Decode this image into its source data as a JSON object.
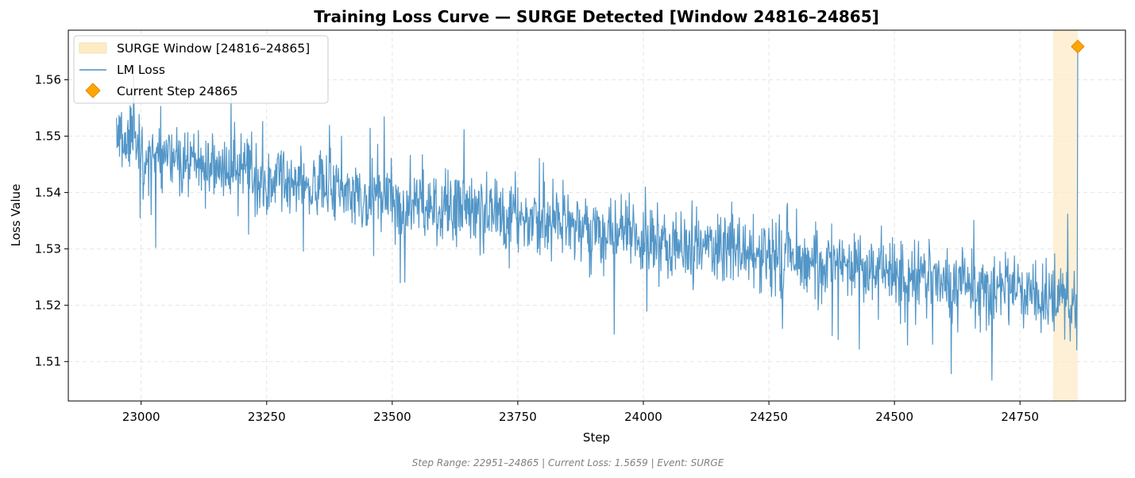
{
  "chart_data": {
    "type": "line",
    "title": "Training Loss Curve — SURGE Detected [Window 24816–24865]",
    "xlabel": "Step",
    "ylabel": "Loss Value",
    "xlim": [
      22855,
      24960
    ],
    "ylim": [
      1.503,
      1.5688
    ],
    "x_ticks": [
      23000,
      23250,
      23500,
      23750,
      24000,
      24250,
      24500,
      24750
    ],
    "x_tick_labels": [
      "23000",
      "23250",
      "23500",
      "23750",
      "24000",
      "24250",
      "24500",
      "24750"
    ],
    "y_ticks": [
      1.51,
      1.52,
      1.53,
      1.54,
      1.55,
      1.56
    ],
    "y_tick_labels": [
      "1.51",
      "1.52",
      "1.53",
      "1.54",
      "1.55",
      "1.56"
    ],
    "grid": true,
    "legend_position": "top-left",
    "surge_window": {
      "name": "SURGE Window [24816–24865]",
      "start": 24816,
      "end": 24865,
      "color": "#fdebc8"
    },
    "series": [
      {
        "name": "LM Loss",
        "color": "#4a90c4",
        "x_start": 22951,
        "x_end": 24865,
        "trend_start": 1.548,
        "trend_end": 1.5205,
        "final_value": 1.5659
      }
    ],
    "marker": {
      "name": "Current Step 24865",
      "x": 24865,
      "y": 1.5659,
      "color": "#ffa500"
    },
    "footer": "Step Range: 22951–24865 | Current Loss: 1.5659 | Event: SURGE"
  }
}
